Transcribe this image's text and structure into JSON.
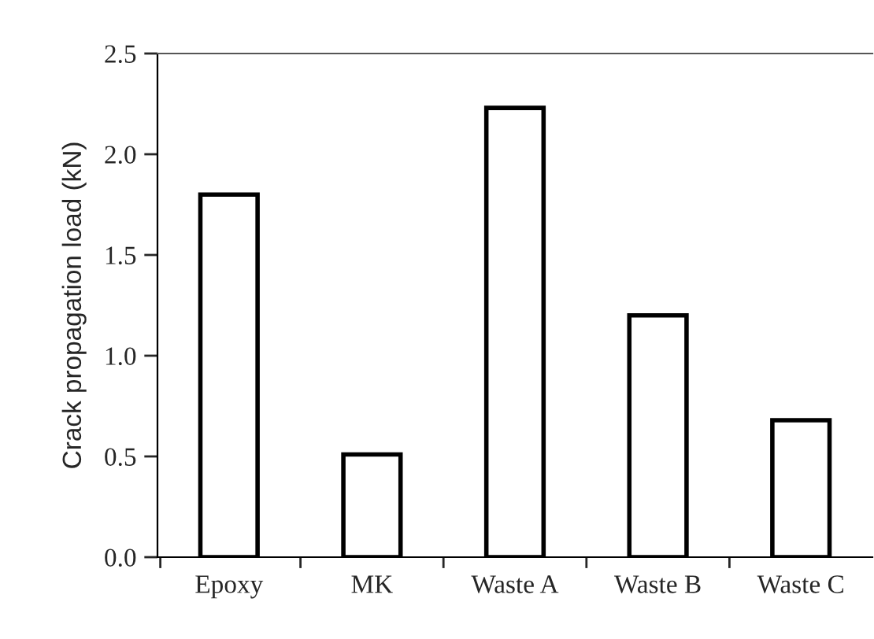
{
  "chart_data": {
    "type": "bar",
    "ylabel": "Crack propagation load (kN)",
    "categories": [
      "Epoxy",
      "MK",
      "Waste A",
      "Waste B",
      "Waste C"
    ],
    "values": [
      1.8,
      0.51,
      2.23,
      1.2,
      0.68
    ],
    "color": "#ffffff",
    "ylim": [
      0,
      2.5
    ],
    "yticks": [
      {
        "value": 0,
        "label": "0.0"
      },
      {
        "value": 0.5,
        "label": "0.5"
      },
      {
        "value": 1.0,
        "label": "1.0"
      },
      {
        "value": 1.5,
        "label": "1.5"
      },
      {
        "value": 2.0,
        "label": "2.0"
      },
      {
        "value": 2.5,
        "label": "2.5"
      }
    ],
    "grid": false,
    "legend": false
  }
}
